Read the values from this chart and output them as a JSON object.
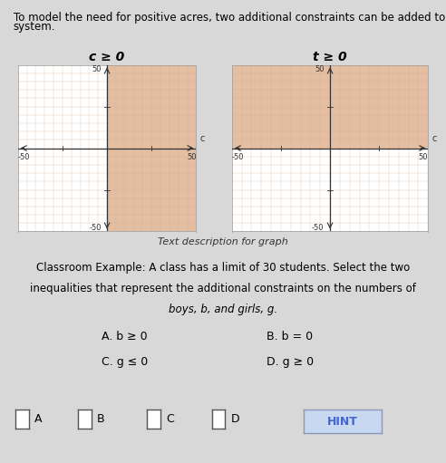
{
  "page_bg": "#d8d8d8",
  "graph_bg": "white",
  "top_text_line1": "To model the need for positive acres, two additional constraints can be added to the",
  "top_text_line2": "system.",
  "graph1_title": "c ≥ 0",
  "graph2_title": "t ≥ 0",
  "xlim": [
    -50,
    50
  ],
  "ylim": [
    -50,
    50
  ],
  "shade_color": "#dba882",
  "shade_alpha": 0.75,
  "grid_color": "#b8855a",
  "grid_alpha": 0.45,
  "graph1_shade": [
    0,
    50,
    -50,
    50
  ],
  "graph2_shade": [
    -50,
    50,
    0,
    50
  ],
  "graph1_xlabel": "c",
  "graph2_xlabel": "c",
  "caption": "Text description for graph",
  "classroom_line1": "Classroom Example: A class has a limit of 30 students. Select the two",
  "classroom_line2": "inequalities that represent the additional constraints on the numbers of",
  "classroom_line3": "boys, b, and girls, g.",
  "option_A": "A. b ≥ 0",
  "option_B": "B. b = 0",
  "option_C": "C. g ≤ 0",
  "option_D": "D. g ≥ 0",
  "checkbox_labels": [
    "A",
    "B",
    "C",
    "D"
  ],
  "hint_text": "HINT",
  "hint_color": "#4466cc",
  "hint_bg": "#c8d8f0",
  "top_fontsize": 8.5,
  "title_fontsize": 10,
  "tick_fontsize": 6,
  "caption_fontsize": 8,
  "classroom_fontsize": 8.5,
  "option_fontsize": 9,
  "checkbox_fontsize": 9
}
